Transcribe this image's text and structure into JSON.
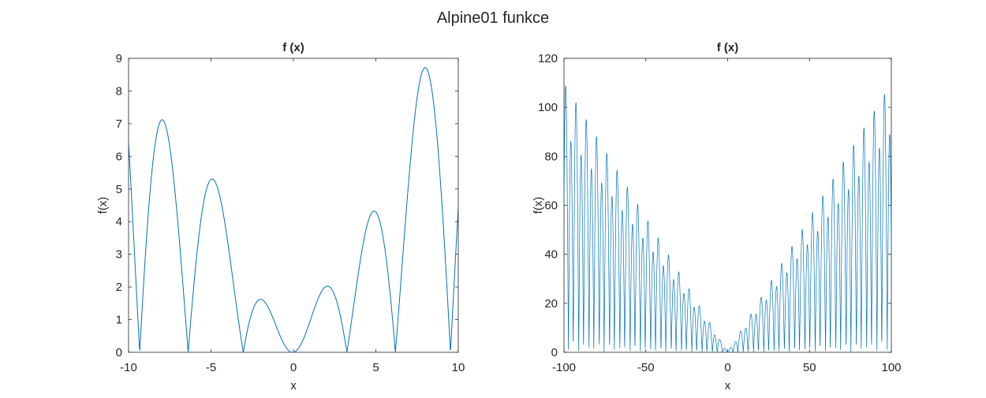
{
  "figure": {
    "title": "Alpine01 funkce",
    "line_color": "#0072BD"
  },
  "chart_data": [
    {
      "type": "line",
      "title": "f (x)",
      "xlabel": "x",
      "ylabel": "f(x)",
      "xlim": [
        -10,
        10
      ],
      "ylim": [
        0,
        9
      ],
      "xticks": [
        -10,
        -5,
        0,
        5,
        10
      ],
      "yticks": [
        0,
        1,
        2,
        3,
        4,
        5,
        6,
        7,
        8,
        9
      ],
      "grid": false,
      "series": [
        {
          "function": "|x*sin(x) + 0.1*x|",
          "samples": 1200
        }
      ]
    },
    {
      "type": "line",
      "title": "f (x)",
      "xlabel": "x",
      "ylabel": "f(x)",
      "xlim": [
        -100,
        100
      ],
      "ylim": [
        0,
        120
      ],
      "xticks": [
        -100,
        -50,
        0,
        50,
        100
      ],
      "yticks": [
        0,
        20,
        40,
        60,
        80,
        100,
        120
      ],
      "grid": false,
      "series": [
        {
          "function": "|x*sin(x) + 0.1*x|",
          "samples": 2000
        }
      ]
    }
  ]
}
